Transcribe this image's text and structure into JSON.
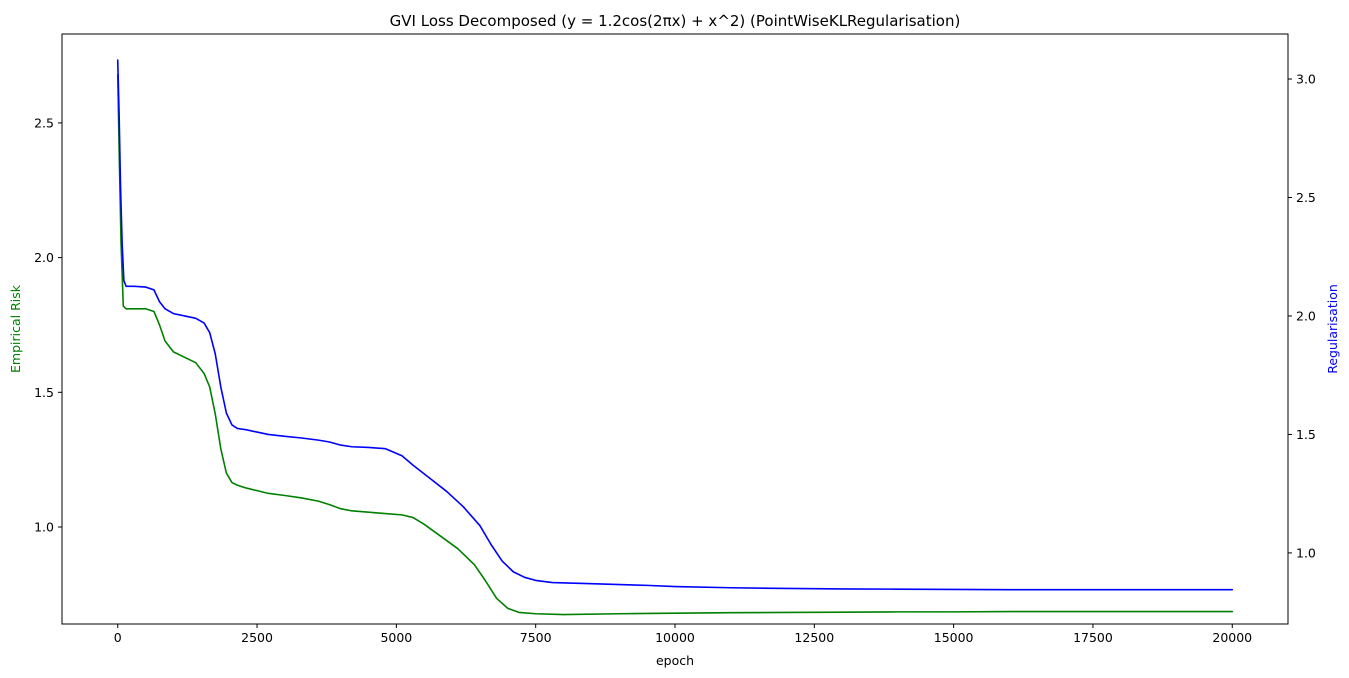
{
  "chart_data": {
    "type": "line",
    "title": "GVI Loss Decomposed (y = 1.2cos(2πx) + x^2) (PointWiseKLRegularisation)",
    "xlabel": "epoch",
    "ylabel_left": "Empirical Risk",
    "ylabel_right": "Regularisation",
    "xlim": [
      -1000,
      21000
    ],
    "ylim_left": [
      0.64,
      2.83
    ],
    "ylim_right": [
      0.7,
      3.19
    ],
    "x_ticks": [
      0,
      2500,
      5000,
      7500,
      10000,
      12500,
      15000,
      17500,
      20000
    ],
    "x_tick_labels": [
      "0",
      "2500",
      "5000",
      "7500",
      "10000",
      "12500",
      "15000",
      "17500",
      "20000"
    ],
    "y_left_ticks": [
      1.0,
      1.5,
      2.0,
      2.5
    ],
    "y_left_tick_labels": [
      "1.0",
      "1.5",
      "2.0",
      "2.5"
    ],
    "y_right_ticks": [
      1.0,
      1.5,
      2.0,
      2.5,
      3.0
    ],
    "y_right_tick_labels": [
      "1.0",
      "1.5",
      "2.0",
      "2.5",
      "3.0"
    ],
    "grid": false,
    "legend": "none",
    "label_colors": {
      "left": "#008000",
      "right": "#0000ff"
    },
    "series": [
      {
        "axis": "left",
        "color": "#008000",
        "x": [
          0,
          30,
          60,
          100,
          150,
          300,
          500,
          650,
          750,
          850,
          1000,
          1200,
          1400,
          1550,
          1650,
          1750,
          1850,
          1950,
          2050,
          2150,
          2300,
          2500,
          2700,
          3000,
          3300,
          3600,
          3800,
          4000,
          4200,
          4500,
          4800,
          5100,
          5300,
          5500,
          5800,
          6100,
          6400,
          6600,
          6800,
          7000,
          7200,
          7500,
          8000,
          9000,
          10000,
          11000,
          12000,
          13000,
          14000,
          15000,
          16000,
          17000,
          18000,
          19000,
          20000
        ],
        "y": [
          2.68,
          2.35,
          2.05,
          1.82,
          1.81,
          1.81,
          1.81,
          1.8,
          1.75,
          1.69,
          1.65,
          1.63,
          1.61,
          1.57,
          1.52,
          1.42,
          1.29,
          1.2,
          1.165,
          1.155,
          1.145,
          1.135,
          1.125,
          1.117,
          1.108,
          1.096,
          1.083,
          1.068,
          1.06,
          1.055,
          1.05,
          1.045,
          1.035,
          1.01,
          0.965,
          0.92,
          0.86,
          0.8,
          0.735,
          0.698,
          0.683,
          0.678,
          0.675,
          0.678,
          0.68,
          0.682,
          0.683,
          0.684,
          0.685,
          0.685,
          0.686,
          0.686,
          0.686,
          0.686,
          0.686
        ]
      },
      {
        "axis": "right",
        "color": "#0000ff",
        "x": [
          0,
          25,
          50,
          80,
          110,
          150,
          300,
          500,
          650,
          750,
          850,
          1000,
          1200,
          1400,
          1550,
          1650,
          1750,
          1850,
          1950,
          2050,
          2150,
          2300,
          2500,
          2700,
          3000,
          3300,
          3600,
          3800,
          4000,
          4200,
          4500,
          4800,
          5100,
          5300,
          5600,
          5900,
          6200,
          6500,
          6700,
          6900,
          7100,
          7300,
          7500,
          7800,
          8500,
          9500,
          10000,
          11000,
          12000,
          13000,
          14000,
          15000,
          16000,
          17000,
          18000,
          19000,
          20000
        ],
        "y": [
          3.08,
          2.85,
          2.55,
          2.3,
          2.15,
          2.125,
          2.125,
          2.122,
          2.11,
          2.06,
          2.03,
          2.01,
          2.0,
          1.99,
          1.97,
          1.93,
          1.84,
          1.7,
          1.59,
          1.54,
          1.525,
          1.52,
          1.51,
          1.5,
          1.492,
          1.485,
          1.476,
          1.468,
          1.455,
          1.448,
          1.445,
          1.44,
          1.41,
          1.37,
          1.315,
          1.26,
          1.195,
          1.115,
          1.035,
          0.965,
          0.92,
          0.897,
          0.884,
          0.875,
          0.87,
          0.863,
          0.858,
          0.853,
          0.85,
          0.848,
          0.847,
          0.846,
          0.845,
          0.845,
          0.845,
          0.845,
          0.845
        ]
      }
    ]
  }
}
